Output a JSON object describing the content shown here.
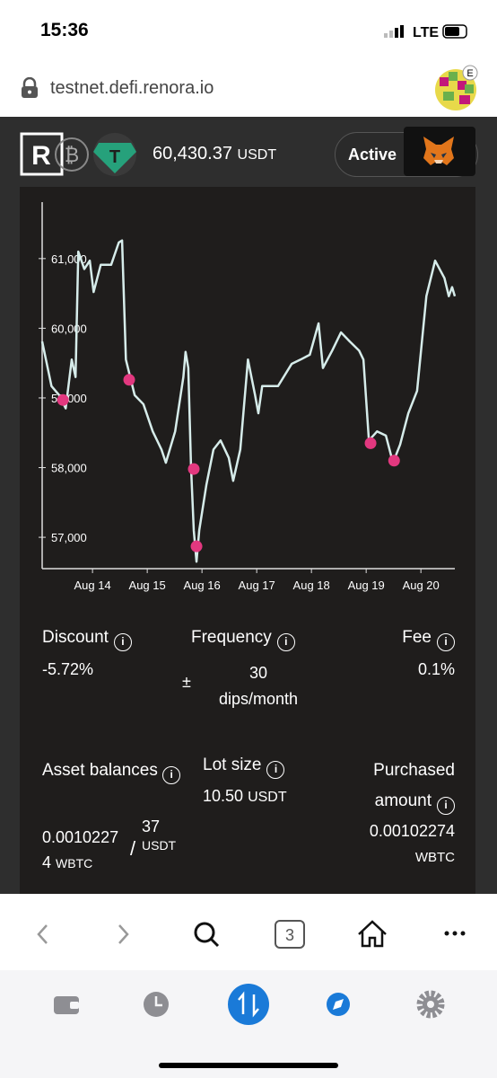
{
  "status_bar": {
    "time": "15:36",
    "network": "LTE"
  },
  "browser": {
    "url": "testnet.defi.renora.io",
    "avatar_badge": "E",
    "tab_count": "3"
  },
  "header": {
    "balance": "60,430.37",
    "balance_unit": "USDT",
    "status": "Active"
  },
  "chart_data": {
    "type": "line",
    "x": [
      13.08,
      13.25,
      13.39,
      13.51,
      13.62,
      13.69,
      13.74,
      13.85,
      13.95,
      14.02,
      14.15,
      14.34,
      14.48,
      14.54,
      14.61,
      14.77,
      14.93,
      15.1,
      15.26,
      15.34,
      15.51,
      15.66,
      15.7,
      15.75,
      15.8,
      15.85,
      15.9,
      15.95,
      16.08,
      16.21,
      16.34,
      16.49,
      16.57,
      16.7,
      16.84,
      16.97,
      17.03,
      17.1,
      17.39,
      17.64,
      17.8,
      17.97,
      18.13,
      18.21,
      18.38,
      18.54,
      18.7,
      18.87,
      18.95,
      19.05,
      19.2,
      19.36,
      19.49,
      19.62,
      19.77,
      19.93,
      20.1,
      20.26,
      20.43,
      20.51,
      20.57,
      20.62
    ],
    "series": [
      {
        "color": "#d6ecea",
        "values": [
          59810,
          59170,
          59040,
          58850,
          59550,
          59300,
          61100,
          60850,
          60970,
          60520,
          60910,
          60910,
          61230,
          61260,
          59550,
          59040,
          58910,
          58520,
          58260,
          58070,
          58520,
          59300,
          59660,
          59430,
          58010,
          57100,
          56650,
          57100,
          57750,
          58260,
          58390,
          58140,
          57810,
          58260,
          59550,
          59040,
          58780,
          59170,
          59170,
          59490,
          59550,
          59620,
          60070,
          59430,
          59680,
          59940,
          59810,
          59680,
          59550,
          58390,
          58520,
          58460,
          58070,
          58330,
          58780,
          59100,
          60460,
          60970,
          60720,
          60460,
          60590,
          60460
        ]
      }
    ],
    "markers": {
      "color": "#e2387f",
      "x": [
        13.46,
        14.67,
        15.85,
        15.9,
        19.08,
        19.51
      ],
      "values": [
        58970,
        59260,
        57980,
        56870,
        58350,
        58100
      ]
    },
    "xlim": [
      13.08,
      20.62
    ],
    "ylim": [
      56550,
      61810
    ],
    "xticks": [
      {
        "value": 14,
        "label": "Aug 14"
      },
      {
        "value": 15,
        "label": "Aug 15"
      },
      {
        "value": 16,
        "label": "Aug 16"
      },
      {
        "value": 17,
        "label": "Aug 17"
      },
      {
        "value": 18,
        "label": "Aug 18"
      },
      {
        "value": 19,
        "label": "Aug 19"
      },
      {
        "value": 20,
        "label": "Aug 20"
      }
    ],
    "yticks": [
      {
        "value": 57000,
        "label": "57,000"
      },
      {
        "value": 58000,
        "label": "58,000"
      },
      {
        "value": 59000,
        "label": "59,000"
      },
      {
        "value": 60000,
        "label": "60,000"
      },
      {
        "value": 61000,
        "label": "61,000"
      }
    ]
  },
  "stats": {
    "discount": {
      "label": "Discount",
      "value": "-5.72%"
    },
    "frequency": {
      "label": "Frequency",
      "prefix": "±",
      "value": "30",
      "unit": "dips/month"
    },
    "fee": {
      "label": "Fee",
      "value": "0.1%"
    }
  },
  "balances": {
    "asset": {
      "label": "Asset balances",
      "value": "0.00102274",
      "unit": "WBTC",
      "separator": "/",
      "value2": "37",
      "unit2": "USDT"
    },
    "lot_size": {
      "label": "Lot size",
      "value": "10.50",
      "unit": "USDT"
    },
    "purchased": {
      "label": "Purchased amount",
      "value": "0.00102274",
      "unit": "WBTC"
    }
  }
}
